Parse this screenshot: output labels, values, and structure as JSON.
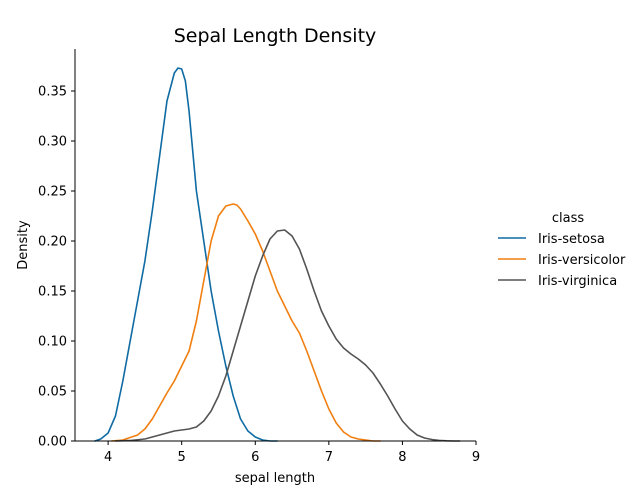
{
  "chart_data": {
    "type": "line",
    "title": "Sepal Length Density",
    "xlabel": "sepal length",
    "ylabel": "Density",
    "xlim": [
      3.55,
      9.0
    ],
    "ylim": [
      0,
      0.392
    ],
    "xticks": [
      4,
      5,
      6,
      7,
      8,
      9
    ],
    "yticks": [
      0.0,
      0.05,
      0.1,
      0.15,
      0.2,
      0.25,
      0.3,
      0.35
    ],
    "ytick_labels": [
      "0.00",
      "0.05",
      "0.10",
      "0.15",
      "0.20",
      "0.25",
      "0.30",
      "0.35"
    ],
    "grid": false,
    "legend": {
      "title": "class",
      "placement": "right outside"
    },
    "series": [
      {
        "name": "Iris-setosa",
        "color": "#0f6ba3",
        "x": [
          3.82,
          3.9,
          4.0,
          4.1,
          4.2,
          4.3,
          4.4,
          4.5,
          4.6,
          4.7,
          4.8,
          4.9,
          4.95,
          5.0,
          5.05,
          5.1,
          5.2,
          5.3,
          5.4,
          5.5,
          5.6,
          5.7,
          5.8,
          5.9,
          6.0,
          6.1,
          6.2,
          6.3
        ],
        "y": [
          0.0,
          0.002,
          0.008,
          0.025,
          0.06,
          0.1,
          0.14,
          0.18,
          0.23,
          0.285,
          0.34,
          0.368,
          0.373,
          0.372,
          0.36,
          0.33,
          0.25,
          0.2,
          0.15,
          0.11,
          0.075,
          0.045,
          0.022,
          0.01,
          0.004,
          0.001,
          0.0,
          0.0
        ]
      },
      {
        "name": "Iris-versicolor",
        "color": "#f07f10",
        "x": [
          4.05,
          4.2,
          4.4,
          4.5,
          4.6,
          4.7,
          4.8,
          4.9,
          5.0,
          5.1,
          5.2,
          5.3,
          5.4,
          5.5,
          5.6,
          5.7,
          5.75,
          5.8,
          5.9,
          6.0,
          6.1,
          6.2,
          6.3,
          6.4,
          6.5,
          6.6,
          6.7,
          6.8,
          6.9,
          7.0,
          7.1,
          7.2,
          7.3,
          7.4,
          7.5,
          7.6,
          7.7
        ],
        "y": [
          0.0,
          0.001,
          0.006,
          0.012,
          0.022,
          0.035,
          0.048,
          0.06,
          0.075,
          0.09,
          0.12,
          0.16,
          0.2,
          0.225,
          0.235,
          0.237,
          0.236,
          0.232,
          0.22,
          0.207,
          0.19,
          0.17,
          0.15,
          0.135,
          0.12,
          0.108,
          0.09,
          0.07,
          0.05,
          0.032,
          0.018,
          0.009,
          0.004,
          0.002,
          0.001,
          0.0,
          0.0
        ]
      },
      {
        "name": "Iris-virginica",
        "color": "#545454",
        "x": [
          4.1,
          4.3,
          4.5,
          4.7,
          4.9,
          5.1,
          5.2,
          5.3,
          5.4,
          5.5,
          5.6,
          5.7,
          5.8,
          5.9,
          6.0,
          6.1,
          6.2,
          6.3,
          6.4,
          6.5,
          6.6,
          6.7,
          6.8,
          6.9,
          7.0,
          7.1,
          7.2,
          7.3,
          7.4,
          7.5,
          7.6,
          7.7,
          7.8,
          7.9,
          8.0,
          8.1,
          8.2,
          8.3,
          8.4,
          8.5,
          8.6,
          8.7,
          8.78
        ],
        "y": [
          0.0,
          0.0005,
          0.002,
          0.006,
          0.01,
          0.012,
          0.014,
          0.02,
          0.03,
          0.045,
          0.065,
          0.09,
          0.115,
          0.14,
          0.165,
          0.185,
          0.202,
          0.21,
          0.211,
          0.205,
          0.192,
          0.172,
          0.15,
          0.13,
          0.115,
          0.102,
          0.093,
          0.087,
          0.082,
          0.076,
          0.068,
          0.057,
          0.045,
          0.032,
          0.02,
          0.012,
          0.006,
          0.003,
          0.0015,
          0.0006,
          0.0002,
          0.0,
          0.0
        ]
      }
    ]
  }
}
